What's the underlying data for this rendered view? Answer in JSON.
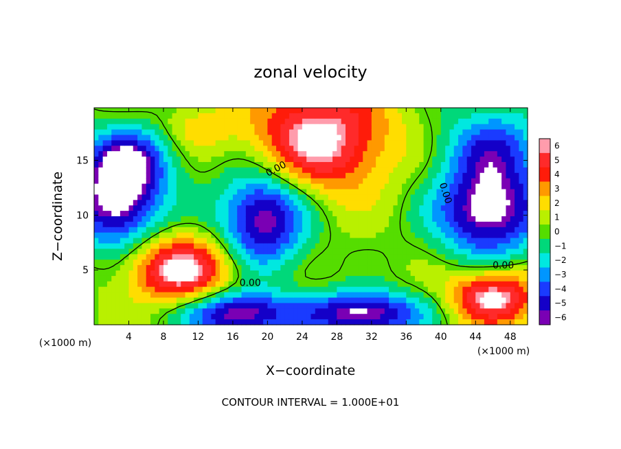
{
  "chart_data": {
    "type": "heatmap",
    "title": "zonal velocity",
    "xlabel": "X−coordinate",
    "ylabel": "Z−coordinate",
    "x_unit": "(×1000 m)",
    "y_unit": "(×1000 m)",
    "xlim": [
      0,
      50
    ],
    "ylim": [
      0,
      19.8
    ],
    "x_ticks": [
      4,
      8,
      12,
      16,
      20,
      24,
      28,
      32,
      36,
      40,
      44,
      48
    ],
    "x_tick_labels": [
      "4",
      "8",
      "12",
      "16",
      "20",
      "24",
      "28",
      "32",
      "36",
      "40",
      "44",
      "48"
    ],
    "y_ticks": [
      5,
      10,
      15
    ],
    "y_tick_labels": [
      "5",
      "10",
      "15"
    ],
    "colorbar": {
      "min": -6,
      "max": 6,
      "levels": [
        6,
        5,
        4,
        3,
        2,
        1,
        0,
        -1,
        -2,
        -3,
        -4,
        -5,
        -6
      ],
      "labels": [
        "6",
        "5",
        "4",
        "3",
        "2",
        "1",
        "0",
        "−1",
        "−2",
        "−3",
        "−4",
        "−5",
        "−6"
      ],
      "colors": [
        "#ff9cac",
        "#ff2a2a",
        "#ff1c0a",
        "#ff9900",
        "#ffdd00",
        "#b9f000",
        "#55dd00",
        "#00d87a",
        "#00e8e0",
        "#0096ff",
        "#1a3bff",
        "#1400c8",
        "#7a00b4"
      ],
      "above_max_color": "#ffffff",
      "below_min_color": "#ffffff"
    },
    "contour_labels": [
      {
        "text": "0.00",
        "x": 21,
        "y": 14.2,
        "angle": 28
      },
      {
        "text": "0.00",
        "x": 40.5,
        "y": 12,
        "angle": -72
      },
      {
        "text": "0.00",
        "x": 18,
        "y": 3.8,
        "angle": 0
      },
      {
        "text": "0.00",
        "x": 47.2,
        "y": 5.4,
        "angle": 0
      }
    ],
    "contour_interval": "CONTOUR INTERVAL = 1.000E+01",
    "field_regions": [
      {
        "kind": "background",
        "value": 0.3
      },
      {
        "kind": "blob",
        "x": 26,
        "y": 17,
        "rx": 8,
        "ry": 5,
        "value": 6.6
      },
      {
        "kind": "blob",
        "x": 2.5,
        "y": 11,
        "rx": 5,
        "ry": 4,
        "value": -6.6
      },
      {
        "kind": "blob",
        "x": 19.5,
        "y": 9.8,
        "rx": 5,
        "ry": 4.5,
        "value": -6.6
      },
      {
        "kind": "blob",
        "x": 45.5,
        "y": 10.2,
        "rx": 6,
        "ry": 4,
        "value": -6.6
      },
      {
        "kind": "blob",
        "x": 10,
        "y": 5,
        "rx": 6,
        "ry": 3,
        "value": 6.6
      },
      {
        "kind": "blob",
        "x": 16.5,
        "y": 1,
        "rx": 6,
        "ry": 2,
        "value": -6.6
      },
      {
        "kind": "blob",
        "x": 31,
        "y": 1,
        "rx": 7,
        "ry": 2,
        "value": -6.6
      },
      {
        "kind": "blob",
        "x": 46,
        "y": 2.5,
        "rx": 5,
        "ry": 2.5,
        "value": 6.6
      },
      {
        "kind": "blob",
        "x": 4,
        "y": 15,
        "rx": 5,
        "ry": 3,
        "value": -5
      },
      {
        "kind": "blob",
        "x": 46,
        "y": 16,
        "rx": 6,
        "ry": 4,
        "value": -4
      },
      {
        "kind": "blob",
        "x": 12,
        "y": 18,
        "rx": 4,
        "ry": 2,
        "value": 2
      }
    ]
  }
}
